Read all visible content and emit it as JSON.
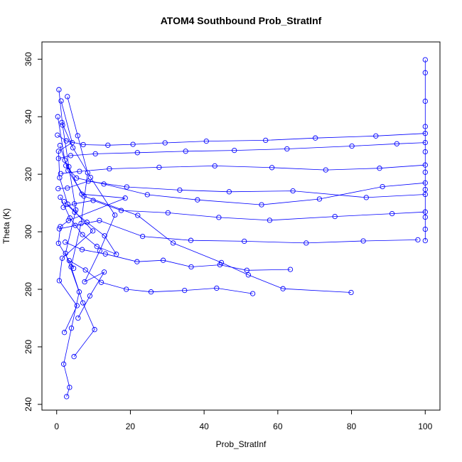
{
  "chart_data": {
    "type": "scatter",
    "title": "ATOM4 Southbound Prob_StratInf",
    "xlabel": "Prob_StratInf",
    "ylabel": "Theta (K)",
    "xlim": [
      -4,
      104
    ],
    "ylim": [
      238,
      366
    ],
    "xticks": [
      "0",
      "20",
      "40",
      "60",
      "80",
      "100"
    ],
    "yticks": [
      "240",
      "260",
      "280",
      "300",
      "320",
      "340",
      "360"
    ],
    "grid": false,
    "colors": {
      "series": "#0000ff",
      "axes": "#000000"
    },
    "series": [
      {
        "x": [
          1.2,
          4.2,
          0.5,
          0.8,
          3.0,
          9.8,
          1.5,
          0.7,
          5.5,
          2.1
        ],
        "y": [
          345.5,
          331.0,
          328.0,
          318.8,
          309.6,
          300.3,
          290.8,
          283.0,
          274.3,
          265.0
        ]
      },
      {
        "x": [
          0.3,
          2.2,
          6.8,
          18.6,
          3.2,
          1.0,
          0.5,
          4.6
        ],
        "y": [
          340.0,
          324.9,
          313.1,
          311.7,
          303.9,
          301.8,
          296.0,
          287.3
        ]
      },
      {
        "x": [
          0.9,
          3.1,
          7.4,
          22.0,
          31.6,
          44.7,
          52.0,
          61.4,
          79.9
        ],
        "y": [
          330.0,
          321.3,
          312.4,
          305.7,
          296.1,
          289.3,
          285.0,
          280.2,
          278.9
        ]
      },
      {
        "x": [
          2.5,
          5.4,
          12.8,
          24.6,
          38.2,
          55.6,
          71.3,
          88.4,
          100.0
        ],
        "y": [
          323.0,
          318.7,
          316.6,
          312.9,
          311.1,
          309.4,
          311.4,
          315.7,
          317.0
        ]
      },
      {
        "x": [
          0.5,
          3.8,
          10.5,
          21.9,
          35.0,
          48.2,
          62.5,
          80.1,
          92.3,
          100.0
        ],
        "y": [
          325.5,
          326.5,
          327.1,
          327.5,
          328.0,
          328.3,
          328.8,
          329.8,
          330.6,
          331.0
        ]
      },
      {
        "x": [
          1.1,
          6.2,
          14.3,
          27.8,
          42.9,
          58.4,
          73.0,
          87.6,
          100.0
        ],
        "y": [
          320.2,
          321.0,
          321.9,
          322.4,
          322.9,
          322.3,
          321.5,
          322.1,
          323.2
        ]
      },
      {
        "x": [
          0.4,
          2.9,
          8.6,
          19.0,
          33.4,
          46.8,
          64.1,
          84.0,
          100.0
        ],
        "y": [
          315.0,
          315.2,
          317.6,
          315.6,
          314.5,
          313.9,
          314.2,
          311.9,
          313.0
        ]
      },
      {
        "x": [
          1.8,
          4.8,
          9.9,
          17.5,
          30.2,
          44.0,
          57.8,
          75.5,
          91.0,
          100.0
        ],
        "y": [
          308.5,
          309.7,
          310.9,
          307.4,
          306.6,
          305.0,
          304.0,
          305.3,
          306.3,
          306.9
        ]
      },
      {
        "x": [
          0.7,
          5.1,
          11.6,
          23.3,
          36.4,
          50.9,
          67.7,
          83.2,
          98.0
        ],
        "y": [
          301.0,
          302.2,
          303.9,
          298.4,
          297.0,
          296.7,
          296.1,
          296.8,
          297.2
        ]
      },
      {
        "x": [
          2.3,
          6.9,
          13.2,
          21.8,
          28.9,
          36.5,
          44.3,
          51.6,
          63.4
        ],
        "y": [
          296.4,
          293.8,
          292.3,
          289.6,
          290.1,
          287.8,
          288.5,
          286.6,
          286.9
        ]
      },
      {
        "x": [
          3.4,
          7.8,
          12.1,
          18.9,
          25.6,
          34.7,
          43.4,
          53.2
        ],
        "y": [
          290.0,
          286.7,
          282.4,
          280.0,
          279.1,
          279.6,
          280.4,
          278.5
        ]
      },
      {
        "x": [
          0.6,
          1.6,
          3.3,
          5.2,
          2.4,
          6.1,
          4.0,
          1.9,
          3.5,
          2.7
        ],
        "y": [
          349.4,
          337.1,
          322.6,
          307.6,
          292.5,
          279.1,
          266.5,
          254.0,
          245.9,
          242.7
        ]
      },
      {
        "x": [
          2.9,
          5.7,
          8.4,
          6.6,
          3.9,
          7.1,
          10.3,
          4.7
        ],
        "y": [
          347.0,
          333.4,
          320.5,
          302.9,
          287.8,
          275.3,
          266.0,
          256.6
        ]
      },
      {
        "x": [
          1.4,
          4.4,
          9.2,
          15.8,
          11.7,
          7.6,
          12.9,
          9.0,
          5.8
        ],
        "y": [
          338.0,
          329.2,
          318.9,
          305.8,
          293.4,
          282.6,
          286.0,
          277.7,
          270.0
        ]
      },
      {
        "x": [
          0.2,
          2.6,
          7.2,
          13.9,
          20.7,
          29.4,
          40.6,
          56.7,
          70.2,
          86.6,
          100.0
        ],
        "y": [
          333.6,
          331.6,
          330.3,
          330.1,
          330.4,
          330.9,
          331.5,
          331.8,
          332.6,
          333.3,
          334.2
        ]
      },
      {
        "x": [
          100.0,
          100.0,
          100.0,
          100.0,
          100.0,
          100.0,
          100.0,
          100.0,
          100.0,
          100.0
        ],
        "y": [
          359.8,
          355.3,
          345.4,
          336.6,
          327.8,
          320.7,
          314.7,
          305.1,
          300.9,
          296.9
        ]
      },
      {
        "x": [
          1.0,
          3.6,
          7.0,
          10.9,
          16.2,
          13.0,
          8.2,
          4.9,
          2.0
        ],
        "y": [
          312.0,
          304.8,
          299.0,
          294.9,
          292.2,
          298.6,
          303.3,
          306.8,
          310.5
        ]
      }
    ]
  }
}
